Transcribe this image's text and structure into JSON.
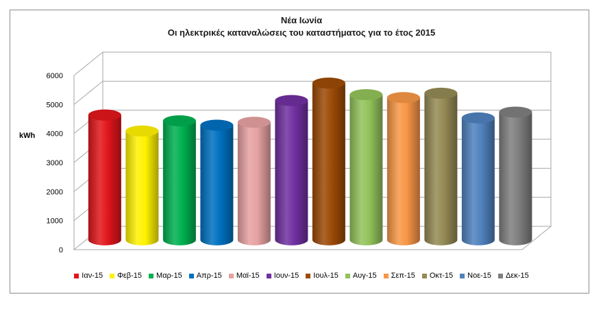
{
  "chart_data": {
    "type": "bar",
    "title": "Νέα Ιωνία",
    "subtitle": "Οι ηλεκτρικές καταναλώσεις του καταστήματος για το έτος 2015",
    "ylabel": "kWh",
    "ylim": [
      0,
      6000
    ],
    "yticks": [
      "0",
      "1000",
      "2000",
      "3000",
      "4000",
      "5000",
      "6000"
    ],
    "grid": true,
    "legend_position": "bottom",
    "bar_shape": "3d-cylinder",
    "categories": [
      "Ιαν-15",
      "Φεβ-15",
      "Μαρ-15",
      "Απρ-15",
      "Μαϊ-15",
      "Ιουν-15",
      "Ιουλ-15",
      "Αυγ-15",
      "Σεπ-15",
      "Οκτ-15",
      "Νοε-15",
      "Δεκ-15"
    ],
    "values": [
      4300,
      3750,
      4100,
      3950,
      4050,
      4800,
      5400,
      5000,
      4900,
      5050,
      4200,
      4400
    ],
    "colors": [
      "#e0161b",
      "#fff200",
      "#00b050",
      "#0070c0",
      "#e6a1a1",
      "#7030a0",
      "#9c4a06",
      "#92c25a",
      "#f79646",
      "#948a54",
      "#4f81bd",
      "#7f7f7f"
    ]
  }
}
